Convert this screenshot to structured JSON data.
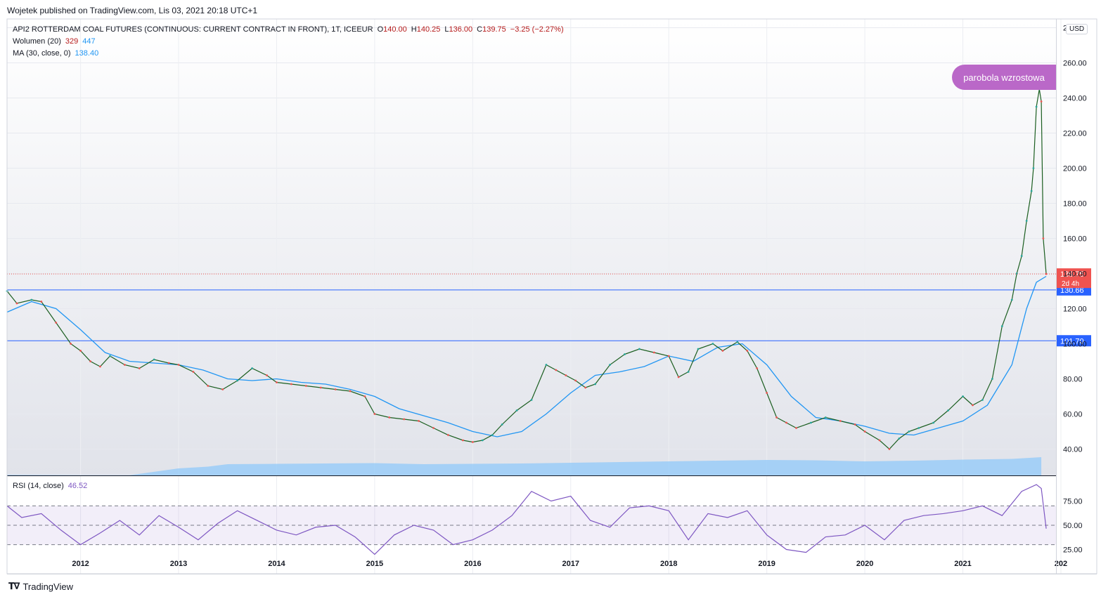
{
  "header": {
    "published": "Wojetek published on TradingView.com, Lis 03, 2021 20:18 UTC+1"
  },
  "legend": {
    "symbol": "API2 ROTTERDAM COAL FUTURES (CONTINUOUS: CURRENT CONTRACT IN FRONT), 1T, ICEEUR",
    "o_label": "O",
    "o": "140.00",
    "h_label": "H",
    "h": "140.25",
    "l_label": "L",
    "l": "136.00",
    "c_label": "C",
    "c": "139.75",
    "change": "−3.25 (−2.27%)",
    "volume_label": "Wolumen (20)",
    "volume_a": "329",
    "volume_b": "447",
    "ma_label": "MA (30, close, 0)",
    "ma_value": "138.40",
    "rsi_label": "RSI (14, close)",
    "rsi_value": "46.52"
  },
  "currency": "USD",
  "annotation": "parobola wzrostowa",
  "footer": {
    "brand": "TradingView"
  },
  "colors": {
    "up": "#26a69a",
    "down": "#ef5350",
    "ma": "#2196f3",
    "volume": "#90caf9",
    "rsi": "#7e57c2",
    "hline": "#2962ff",
    "price_tag": "#ef5350",
    "callout": "#ba68c8"
  },
  "chart_data": {
    "type": "line",
    "price_axis": {
      "ylim": [
        25,
        285
      ],
      "ticks": [
        "40.00",
        "60.00",
        "80.00",
        "100.00",
        "120.00",
        "140.00",
        "160.00",
        "180.00",
        "200.00",
        "220.00",
        "240.00",
        "260.00",
        "280.00"
      ]
    },
    "time_axis": {
      "labels": [
        "2012",
        "2013",
        "2014",
        "2015",
        "2016",
        "2017",
        "2018",
        "2019",
        "2020",
        "2021",
        "202"
      ],
      "xlim": [
        2011.25,
        2021.95
      ]
    },
    "horizontal_lines": [
      {
        "value": 130.66,
        "label": "130.66"
      },
      {
        "value": 101.7,
        "label": "101.70"
      }
    ],
    "last_price": {
      "value": 139.75,
      "label": "139.75",
      "countdown": "2d 4h"
    },
    "close_series": {
      "x": [
        2011.25,
        2011.35,
        2011.5,
        2011.6,
        2011.75,
        2011.9,
        2012.0,
        2012.1,
        2012.2,
        2012.3,
        2012.45,
        2012.6,
        2012.75,
        2012.9,
        2013.0,
        2013.15,
        2013.3,
        2013.45,
        2013.6,
        2013.75,
        2013.9,
        2014.0,
        2014.15,
        2014.3,
        2014.45,
        2014.6,
        2014.75,
        2014.9,
        2015.0,
        2015.15,
        2015.3,
        2015.45,
        2015.6,
        2015.75,
        2015.9,
        2016.0,
        2016.1,
        2016.2,
        2016.3,
        2016.45,
        2016.6,
        2016.75,
        2016.85,
        2016.95,
        2017.05,
        2017.15,
        2017.25,
        2017.4,
        2017.55,
        2017.7,
        2017.85,
        2018.0,
        2018.1,
        2018.2,
        2018.3,
        2018.45,
        2018.55,
        2018.7,
        2018.8,
        2018.9,
        2019.0,
        2019.1,
        2019.2,
        2019.3,
        2019.45,
        2019.6,
        2019.75,
        2019.9,
        2020.0,
        2020.15,
        2020.25,
        2020.35,
        2020.45,
        2020.55,
        2020.7,
        2020.85,
        2021.0,
        2021.1,
        2021.2,
        2021.3,
        2021.4,
        2021.5,
        2021.55,
        2021.6,
        2021.65,
        2021.7,
        2021.72,
        2021.75,
        2021.78,
        2021.8,
        2021.82,
        2021.85
      ],
      "values": [
        130,
        123,
        125,
        124,
        112,
        100,
        96,
        90,
        87,
        93,
        88,
        86,
        91,
        89,
        88,
        84,
        76,
        74,
        79,
        86,
        82,
        78,
        77,
        76,
        75,
        74,
        73,
        70,
        60,
        58,
        57,
        56,
        52,
        48,
        45,
        44,
        45,
        48,
        54,
        62,
        68,
        88,
        85,
        82,
        79,
        75,
        77,
        88,
        94,
        97,
        95,
        93,
        81,
        84,
        97,
        100,
        96,
        101,
        96,
        86,
        72,
        58,
        55,
        52,
        55,
        58,
        56,
        54,
        50,
        45,
        40,
        46,
        50,
        52,
        55,
        62,
        70,
        65,
        68,
        80,
        110,
        125,
        140,
        150,
        170,
        187,
        200,
        235,
        245,
        238,
        160,
        139.75
      ]
    },
    "ma_series": {
      "x": [
        2011.25,
        2011.5,
        2011.75,
        2012.0,
        2012.25,
        2012.5,
        2012.75,
        2013.0,
        2013.25,
        2013.5,
        2013.75,
        2014.0,
        2014.25,
        2014.5,
        2014.75,
        2015.0,
        2015.25,
        2015.5,
        2015.75,
        2016.0,
        2016.25,
        2016.5,
        2016.75,
        2017.0,
        2017.25,
        2017.5,
        2017.75,
        2018.0,
        2018.25,
        2018.5,
        2018.75,
        2019.0,
        2019.25,
        2019.5,
        2019.75,
        2020.0,
        2020.25,
        2020.5,
        2020.75,
        2021.0,
        2021.25,
        2021.5,
        2021.65,
        2021.75,
        2021.85
      ],
      "values": [
        118,
        124,
        120,
        108,
        95,
        90,
        89,
        88,
        85,
        80,
        79,
        80,
        78,
        77,
        74,
        70,
        63,
        59,
        55,
        50,
        47,
        50,
        60,
        72,
        82,
        84,
        87,
        93,
        90,
        98,
        100,
        88,
        70,
        58,
        56,
        53,
        49,
        48,
        52,
        56,
        65,
        88,
        120,
        135,
        138.4
      ]
    },
    "volume_series": {
      "x": [
        2011.25,
        2012.0,
        2012.5,
        2013.0,
        2013.3,
        2013.5,
        2014.0,
        2014.5,
        2015.0,
        2015.5,
        2016.0,
        2016.5,
        2017.0,
        2017.5,
        2018.0,
        2018.5,
        2019.0,
        2019.5,
        2020.0,
        2020.5,
        2021.0,
        2021.5,
        2021.8
      ],
      "values": [
        15,
        5,
        5,
        200,
        250,
        320,
        330,
        340,
        350,
        320,
        330,
        340,
        360,
        380,
        400,
        420,
        440,
        430,
        400,
        420,
        450,
        470,
        520
      ]
    },
    "rsi": {
      "ylim": [
        0,
        100
      ],
      "ticks": [
        "25.00",
        "50.00",
        "75.00"
      ],
      "bands": [
        30,
        50,
        70
      ],
      "x": [
        2011.25,
        2011.4,
        2011.6,
        2011.8,
        2012.0,
        2012.2,
        2012.4,
        2012.6,
        2012.8,
        2013.0,
        2013.2,
        2013.4,
        2013.6,
        2013.8,
        2014.0,
        2014.2,
        2014.4,
        2014.6,
        2014.8,
        2015.0,
        2015.2,
        2015.4,
        2015.6,
        2015.8,
        2016.0,
        2016.2,
        2016.4,
        2016.6,
        2016.8,
        2017.0,
        2017.2,
        2017.4,
        2017.6,
        2017.8,
        2018.0,
        2018.2,
        2018.4,
        2018.6,
        2018.8,
        2019.0,
        2019.2,
        2019.4,
        2019.6,
        2019.8,
        2020.0,
        2020.2,
        2020.4,
        2020.6,
        2020.8,
        2021.0,
        2021.2,
        2021.4,
        2021.6,
        2021.75,
        2021.8,
        2021.85
      ],
      "values": [
        70,
        58,
        62,
        45,
        30,
        42,
        55,
        40,
        60,
        48,
        35,
        52,
        65,
        55,
        45,
        40,
        48,
        50,
        38,
        20,
        40,
        50,
        45,
        30,
        35,
        45,
        60,
        85,
        75,
        80,
        55,
        48,
        68,
        70,
        65,
        35,
        62,
        58,
        65,
        40,
        25,
        22,
        38,
        40,
        50,
        35,
        55,
        60,
        62,
        65,
        70,
        60,
        85,
        92,
        88,
        46.52
      ]
    }
  }
}
